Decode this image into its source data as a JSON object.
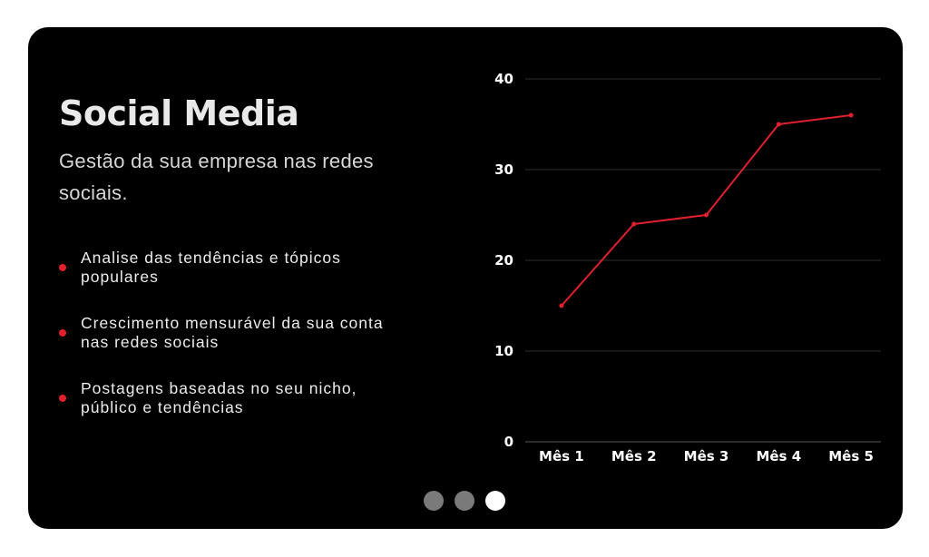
{
  "card": {
    "title": "Social Media",
    "subtitle": "Gestão da sua empresa nas redes sociais."
  },
  "features": [
    "Analise das tendências e tópicos populares",
    "Crescimento mensurável da sua conta nas redes sociais",
    "Postagens baseadas no seu nicho, público e tendências"
  ],
  "colors": {
    "background": "#000000",
    "accent": "#e0202c",
    "bullet": "#e0202c",
    "dot_inactive": "#7a7a7a",
    "dot_active": "#ffffff"
  },
  "carousel": {
    "total": 3,
    "active_index": 2
  },
  "chart_data": {
    "type": "line",
    "categories": [
      "Mês 1",
      "Mês 2",
      "Mês 3",
      "Mês 4",
      "Mês 5"
    ],
    "series": [
      {
        "values": [
          15,
          24,
          25,
          35,
          36
        ],
        "color": "#e0202c"
      }
    ],
    "yticks": [
      0,
      10,
      20,
      30,
      40
    ],
    "ylim": [
      0,
      40
    ],
    "grid": true,
    "legend": false,
    "title": "",
    "xlabel": "",
    "ylabel": ""
  }
}
